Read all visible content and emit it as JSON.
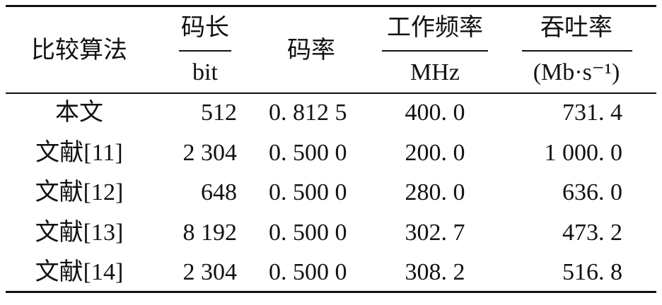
{
  "table": {
    "header": [
      {
        "label": "比较算法"
      },
      {
        "label": "码长",
        "unit": "bit"
      },
      {
        "label": "码率"
      },
      {
        "label": "工作频率",
        "unit": "MHz"
      },
      {
        "label": "吞吐率",
        "unit": "(Mb·s⁻¹)"
      }
    ],
    "rows": [
      [
        "本文",
        "512",
        "0. 812 5",
        "400. 0",
        "731. 4"
      ],
      [
        "文献[11]",
        "2 304",
        "0. 500 0",
        "200. 0",
        "1 000. 0"
      ],
      [
        "文献[12]",
        "648",
        "0. 500 0",
        "280. 0",
        "636. 0"
      ],
      [
        "文献[13]",
        "8 192",
        "0. 500 0",
        "302. 7",
        "473. 2"
      ],
      [
        "文献[14]",
        "2 304",
        "0. 500 0",
        "308. 2",
        "516. 8"
      ]
    ]
  }
}
